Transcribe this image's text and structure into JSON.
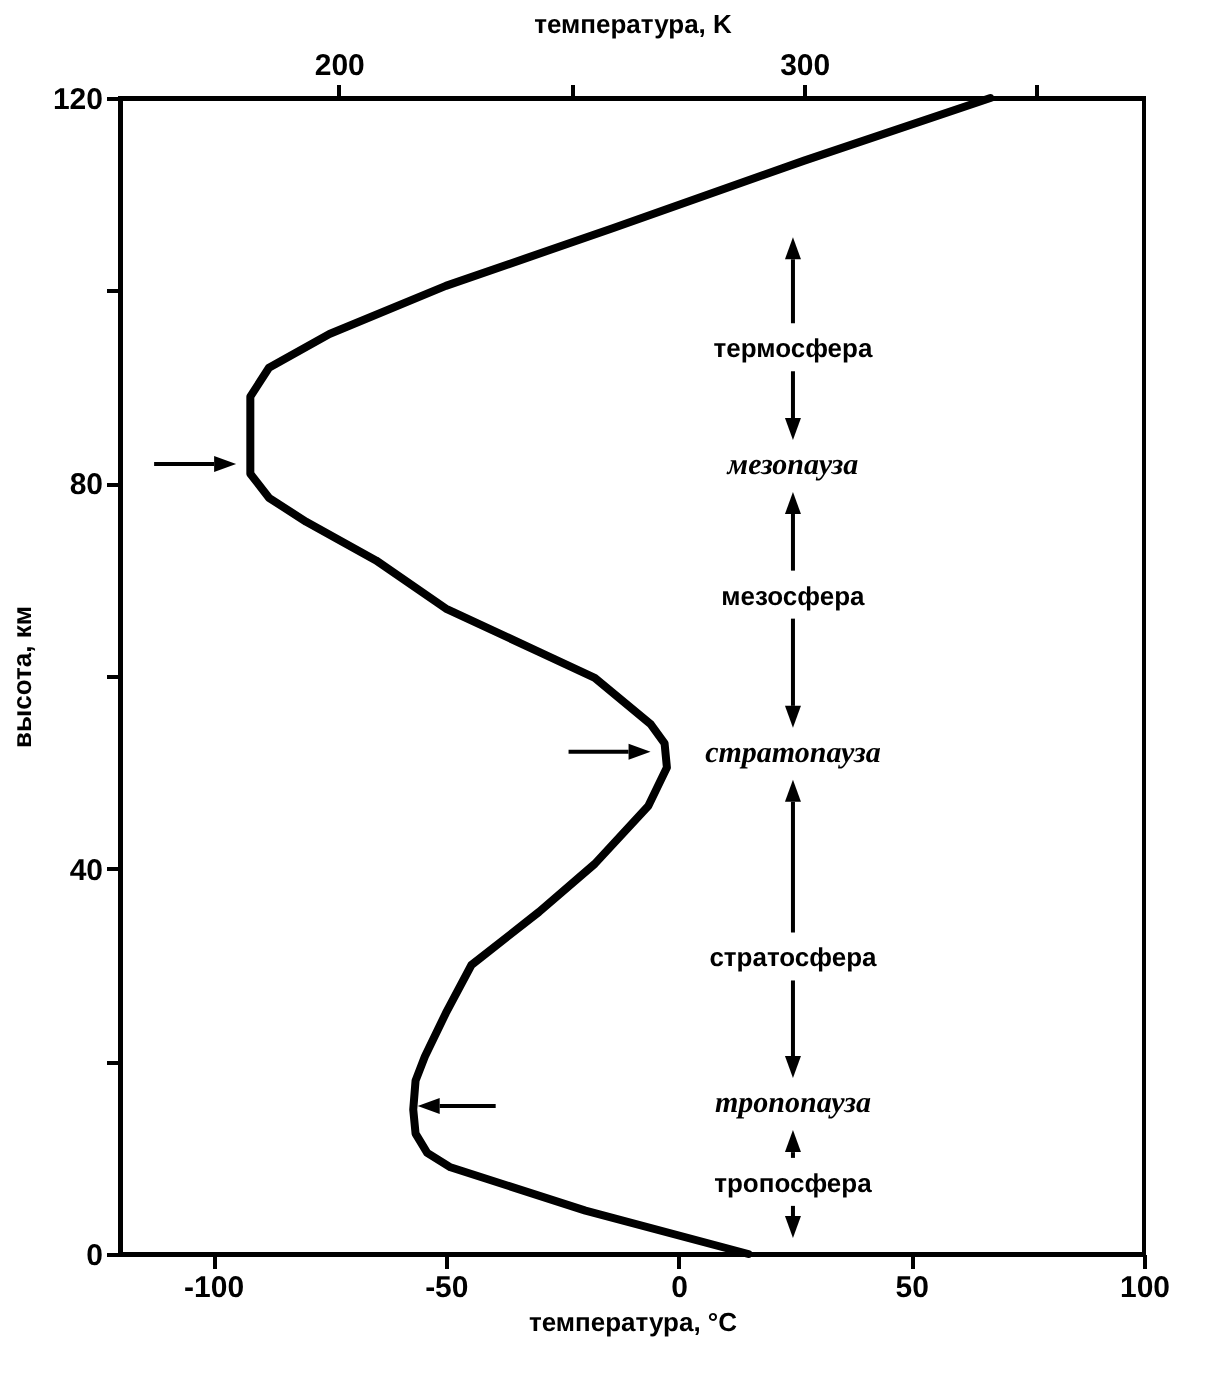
{
  "chart_data": {
    "type": "line",
    "xlabel": "температура, °C",
    "ylabel": "высота, км",
    "x2label": "температура, K",
    "series": [
      {
        "color": "#000000",
        "x": [
          15,
          -20,
          -49,
          -54,
          -56.5,
          -57,
          -56.5,
          -54.5,
          -50,
          -44.5,
          -30,
          -18,
          -6.5,
          -2.5,
          -3,
          -6,
          -18,
          -30,
          -50,
          -65,
          -80,
          -88,
          -92,
          -92,
          -88,
          -75,
          -50,
          -14,
          27,
          67
        ],
        "values": [
          0,
          4.5,
          9,
          10.5,
          12.5,
          15,
          18,
          20.5,
          25,
          30,
          35.5,
          40.5,
          46.5,
          50.5,
          53,
          55,
          59.8,
          62.5,
          67,
          72,
          76,
          78.5,
          81,
          89,
          92,
          95.5,
          100.5,
          106.5,
          113.5,
          120
        ]
      }
    ],
    "xlim": [
      -120,
      100
    ],
    "xticks": [
      -100,
      -50,
      0,
      50,
      100
    ],
    "x2lim": [
      153,
      373
    ],
    "x2ticks": [
      200,
      {
        "value": 250,
        "label": null
      },
      300,
      {
        "value": 350,
        "label": null
      }
    ],
    "ylim": [
      0,
      120
    ],
    "yticks": [
      0,
      {
        "value": 20,
        "label": null
      },
      40,
      {
        "value": 60,
        "label": null
      },
      80,
      {
        "value": 100,
        "label": null
      },
      120
    ],
    "grid": false,
    "marker": "none",
    "line_style": "solid",
    "annotations": [
      "термосфера",
      "мезопауза",
      "мезосфера",
      "стратопауза",
      "стратосфера",
      "тропопауза",
      "тропосфера"
    ]
  }
}
